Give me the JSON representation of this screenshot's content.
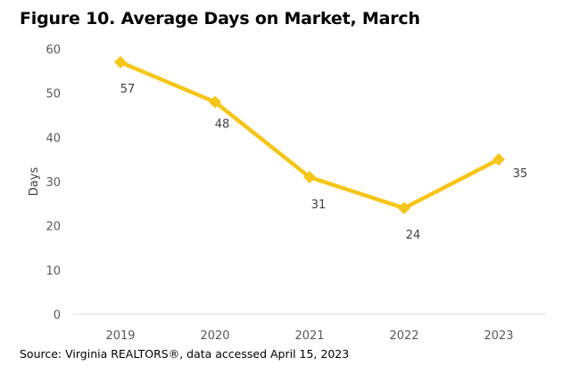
{
  "chart_data": {
    "type": "line",
    "title": "Figure 10. Average Days on Market, March",
    "xlabel": "",
    "ylabel": "Days",
    "categories": [
      "2019",
      "2020",
      "2021",
      "2022",
      "2023"
    ],
    "series": [
      {
        "values": [
          57,
          48,
          31,
          24,
          35
        ],
        "color": "#F5C518",
        "marker": "diamond"
      }
    ],
    "data_labels": [
      "57",
      "48",
      "31",
      "24",
      "35"
    ],
    "ylim": [
      0,
      60
    ],
    "yticks": [
      0,
      10,
      20,
      30,
      40,
      50,
      60
    ],
    "grid": false,
    "legend": "none"
  },
  "source": "Source: Virginia REALTORS®, data accessed April 15, 2023"
}
